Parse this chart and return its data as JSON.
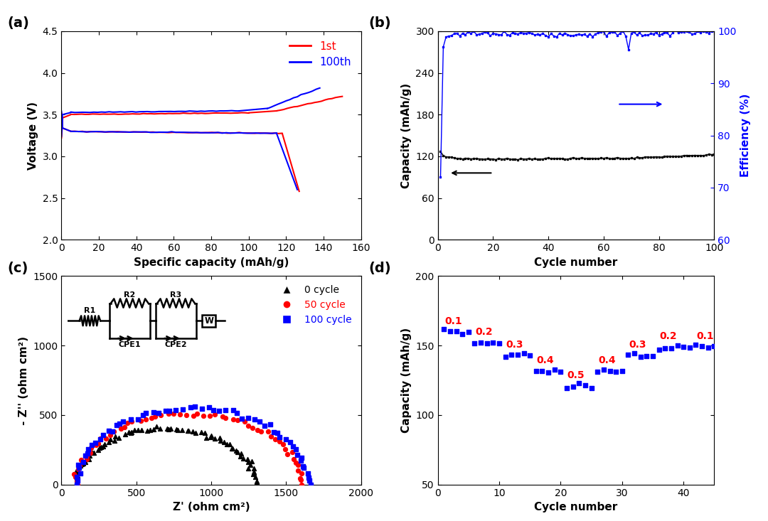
{
  "panel_a": {
    "xlabel": "Specific capacity (mAh/g)",
    "ylabel": "Voltage (V)",
    "xlim": [
      0,
      160
    ],
    "ylim": [
      2.0,
      4.5
    ],
    "xticks": [
      0,
      20,
      40,
      60,
      80,
      100,
      120,
      140,
      160
    ],
    "yticks": [
      2.0,
      2.5,
      3.0,
      3.5,
      4.0,
      4.5
    ],
    "legend_labels": [
      "1st",
      "100th"
    ],
    "colors": [
      "#ff0000",
      "#0000ff"
    ]
  },
  "panel_b": {
    "xlabel": "Cycle number",
    "ylabel": "Capacity (mAh/g)",
    "ylabel2": "Efficiency (%)",
    "xlim": [
      0,
      100
    ],
    "ylim": [
      0,
      300
    ],
    "ylim2": [
      60,
      100
    ],
    "yticks": [
      0,
      60,
      120,
      180,
      240,
      300
    ],
    "yticks2": [
      60,
      70,
      80,
      90,
      100
    ],
    "xticks": [
      0,
      20,
      40,
      60,
      80,
      100
    ]
  },
  "panel_c": {
    "xlabel": "Z' (ohm cm²)",
    "ylabel": "- Z'' (ohm cm²)",
    "xlim": [
      0,
      2000
    ],
    "ylim": [
      0,
      1500
    ],
    "xticks": [
      0,
      500,
      1000,
      1500,
      2000
    ],
    "yticks": [
      0,
      500,
      1000,
      1500
    ],
    "legend_labels": [
      "0 cycle",
      "50 cycle",
      "100 cycle"
    ],
    "colors": [
      "#000000",
      "#ff0000",
      "#0000ff"
    ]
  },
  "panel_d": {
    "xlabel": "Cycle number",
    "ylabel": "Capacity (mAh/g)",
    "xlim": [
      0,
      45
    ],
    "ylim": [
      50,
      200
    ],
    "xticks": [
      0,
      10,
      20,
      30,
      40
    ],
    "yticks": [
      50,
      100,
      150,
      200
    ]
  }
}
